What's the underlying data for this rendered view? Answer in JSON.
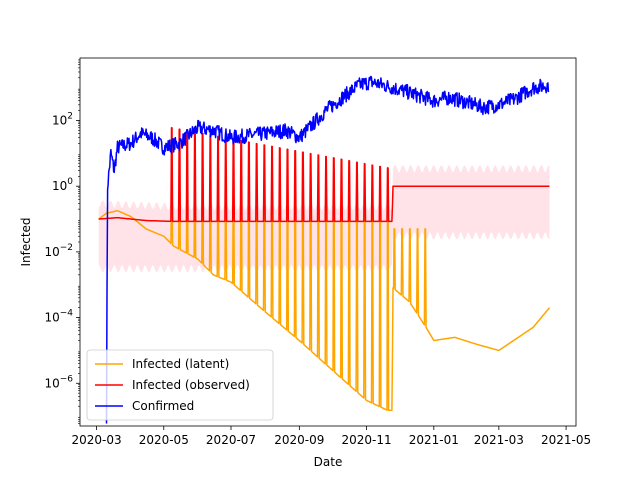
{
  "chart_data": {
    "type": "line",
    "xlabel": "Date",
    "ylabel": "Infected",
    "yscale": "log",
    "xlim": [
      "2020-02-15",
      "2021-05-10"
    ],
    "ylim": [
      5e-08,
      8000
    ],
    "x_ticks": [
      "2020-03",
      "2020-05",
      "2020-07",
      "2020-09",
      "2020-11",
      "2021-01",
      "2021-03",
      "2021-05"
    ],
    "y_ticks": [
      {
        "value": 1e-06,
        "base": "10",
        "exp": "−6"
      },
      {
        "value": 0.0001,
        "base": "10",
        "exp": "−4"
      },
      {
        "value": 0.01,
        "base": "10",
        "exp": "−2"
      },
      {
        "value": 1,
        "base": "10",
        "exp": "0"
      },
      {
        "value": 100,
        "base": "10",
        "exp": "2"
      }
    ],
    "grid": false,
    "legend_position": "lower-left",
    "colors": {
      "latent": "#ffa500",
      "observed": "#ff0000",
      "confirmed": "#0000ff",
      "band": "#ffc0cb"
    },
    "series": [
      {
        "name": "Infected (latent)",
        "color": "#ffa500",
        "base": [
          [
            "2020-03-03",
            0.1
          ],
          [
            "2020-03-10",
            0.15
          ],
          [
            "2020-03-20",
            0.18
          ],
          [
            "2020-04-01",
            0.12
          ],
          [
            "2020-04-15",
            0.05
          ],
          [
            "2020-05-01",
            0.03
          ],
          [
            "2020-05-10",
            0.015
          ],
          [
            "2020-06-01",
            0.006
          ],
          [
            "2020-06-15",
            0.002
          ],
          [
            "2020-07-01",
            0.0012
          ],
          [
            "2020-08-01",
            0.00015
          ],
          [
            "2020-09-01",
            2e-05
          ],
          [
            "2020-10-01",
            2.5e-06
          ],
          [
            "2020-11-01",
            3e-07
          ],
          [
            "2020-11-20",
            1.5e-07
          ],
          [
            "2020-11-24",
            1.5e-07
          ],
          [
            "2020-11-25",
            0.0008
          ],
          [
            "2020-12-10",
            0.0003
          ],
          [
            "2020-12-25",
            5e-05
          ],
          [
            "2021-01-01",
            2e-05
          ],
          [
            "2021-01-20",
            2.5e-05
          ],
          [
            "2021-02-10",
            1.5e-05
          ],
          [
            "2021-03-01",
            1e-05
          ],
          [
            "2021-04-01",
            5e-05
          ],
          [
            "2021-04-16",
            0.0002
          ]
        ],
        "spike_period_days": 7,
        "spike_windows": [
          {
            "start": "2020-05-08",
            "end": "2020-11-24",
            "peak": 0.6
          },
          {
            "start": "2020-11-26",
            "end": "2020-12-28",
            "peak": 0.05
          }
        ]
      },
      {
        "name": "Infected (observed)",
        "color": "#ff0000",
        "base": [
          [
            "2020-03-03",
            0.1
          ],
          [
            "2020-03-20",
            0.11
          ],
          [
            "2020-04-15",
            0.09
          ],
          [
            "2020-05-08",
            0.085
          ],
          [
            "2020-11-24",
            0.085
          ],
          [
            "2020-11-25",
            1.0
          ],
          [
            "2021-04-16",
            1.0
          ]
        ],
        "spike_period_days": 7,
        "spike_windows": [
          {
            "start": "2020-05-08",
            "end": "2020-11-22",
            "peak_start": 60,
            "peak_end": 3.5
          }
        ],
        "band": [
          [
            "2020-03-03",
            0.003,
            0.3
          ],
          [
            "2020-05-08",
            0.003,
            0.25
          ],
          [
            "2020-11-24",
            0.003,
            0.25
          ],
          [
            "2020-11-25",
            0.03,
            3.5
          ],
          [
            "2021-04-16",
            0.03,
            3.5
          ]
        ]
      },
      {
        "name": "Confirmed",
        "color": "#0000ff",
        "base": [
          [
            "2020-03-10",
            1e-07
          ],
          [
            "2020-03-11",
            1.0
          ],
          [
            "2020-03-14",
            10
          ],
          [
            "2020-03-17",
            3
          ],
          [
            "2020-03-20",
            15
          ],
          [
            "2020-04-01",
            20
          ],
          [
            "2020-04-10",
            40
          ],
          [
            "2020-04-20",
            30
          ],
          [
            "2020-05-01",
            15
          ],
          [
            "2020-05-15",
            20
          ],
          [
            "2020-06-01",
            60
          ],
          [
            "2020-06-15",
            50
          ],
          [
            "2020-07-01",
            30
          ],
          [
            "2020-08-01",
            40
          ],
          [
            "2020-08-20",
            50
          ],
          [
            "2020-09-01",
            30
          ],
          [
            "2020-09-10",
            60
          ],
          [
            "2020-09-25",
            200
          ],
          [
            "2020-10-10",
            500
          ],
          [
            "2020-10-25",
            1200
          ],
          [
            "2020-11-05",
            1500
          ],
          [
            "2020-11-25",
            1000
          ],
          [
            "2020-12-10",
            700
          ],
          [
            "2021-01-01",
            400
          ],
          [
            "2021-01-15",
            500
          ],
          [
            "2021-02-01",
            350
          ],
          [
            "2021-02-15",
            250
          ],
          [
            "2021-03-01",
            300
          ],
          [
            "2021-03-15",
            450
          ],
          [
            "2021-04-01",
            1000
          ],
          [
            "2021-04-15",
            1200
          ]
        ]
      }
    ]
  }
}
